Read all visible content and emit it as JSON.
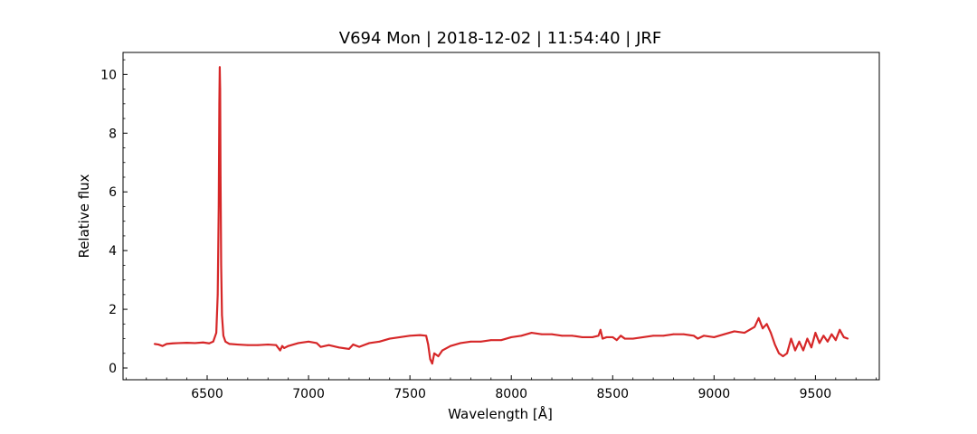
{
  "chart_data": {
    "type": "line",
    "title": "V694 Mon | 2018-12-02 | 11:54:40 | JRF",
    "xlabel": "Wavelength [Å]",
    "ylabel": "Relative flux",
    "xlim": [
      6085,
      9815
    ],
    "ylim": [
      -0.4,
      10.75
    ],
    "x_ticks": [
      6500,
      7000,
      7500,
      8000,
      8500,
      9000,
      9500
    ],
    "x_tick_labels": [
      "6500",
      "7000",
      "7500",
      "8000",
      "8500",
      "9000",
      "9500"
    ],
    "y_ticks": [
      0,
      2,
      4,
      6,
      8,
      10
    ],
    "y_tick_labels": [
      "0",
      "2",
      "4",
      "6",
      "8",
      "10"
    ],
    "grid": false,
    "legend": "none",
    "series": [
      {
        "color": "#d62728",
        "x": [
          6240,
          6260,
          6280,
          6300,
          6330,
          6360,
          6400,
          6440,
          6480,
          6510,
          6530,
          6545,
          6552,
          6557,
          6560,
          6562,
          6564,
          6566,
          6569,
          6573,
          6580,
          6590,
          6610,
          6650,
          6700,
          6750,
          6800,
          6840,
          6860,
          6870,
          6880,
          6900,
          6950,
          7000,
          7040,
          7060,
          7100,
          7150,
          7200,
          7220,
          7250,
          7300,
          7350,
          7400,
          7450,
          7500,
          7550,
          7580,
          7590,
          7600,
          7610,
          7620,
          7640,
          7660,
          7700,
          7750,
          7800,
          7850,
          7900,
          7950,
          8000,
          8050,
          8100,
          8150,
          8200,
          8250,
          8300,
          8350,
          8400,
          8430,
          8440,
          8450,
          8470,
          8500,
          8520,
          8540,
          8560,
          8600,
          8650,
          8700,
          8750,
          8800,
          8850,
          8900,
          8920,
          8950,
          9000,
          9050,
          9100,
          9150,
          9200,
          9220,
          9240,
          9260,
          9280,
          9300,
          9320,
          9340,
          9360,
          9380,
          9400,
          9420,
          9440,
          9460,
          9480,
          9500,
          9520,
          9540,
          9560,
          9580,
          9600,
          9620,
          9640,
          9660
        ],
        "y": [
          0.82,
          0.8,
          0.75,
          0.82,
          0.84,
          0.85,
          0.86,
          0.85,
          0.87,
          0.84,
          0.9,
          1.2,
          2.5,
          5.5,
          9.0,
          10.25,
          9.5,
          6.5,
          3.5,
          1.8,
          1.1,
          0.9,
          0.82,
          0.8,
          0.78,
          0.78,
          0.8,
          0.78,
          0.6,
          0.75,
          0.68,
          0.75,
          0.85,
          0.9,
          0.85,
          0.72,
          0.78,
          0.7,
          0.65,
          0.8,
          0.72,
          0.85,
          0.9,
          1.0,
          1.05,
          1.1,
          1.12,
          1.1,
          0.8,
          0.3,
          0.15,
          0.5,
          0.4,
          0.6,
          0.75,
          0.85,
          0.9,
          0.9,
          0.95,
          0.95,
          1.05,
          1.1,
          1.2,
          1.15,
          1.15,
          1.1,
          1.1,
          1.05,
          1.05,
          1.1,
          1.3,
          1.0,
          1.05,
          1.05,
          0.95,
          1.1,
          1.0,
          1.0,
          1.05,
          1.1,
          1.1,
          1.15,
          1.15,
          1.1,
          1.0,
          1.1,
          1.05,
          1.15,
          1.25,
          1.2,
          1.4,
          1.7,
          1.35,
          1.5,
          1.2,
          0.8,
          0.5,
          0.4,
          0.5,
          1.0,
          0.6,
          0.9,
          0.6,
          1.0,
          0.7,
          1.2,
          0.85,
          1.1,
          0.9,
          1.15,
          0.95,
          1.3,
          1.05,
          1.0
        ]
      }
    ]
  }
}
